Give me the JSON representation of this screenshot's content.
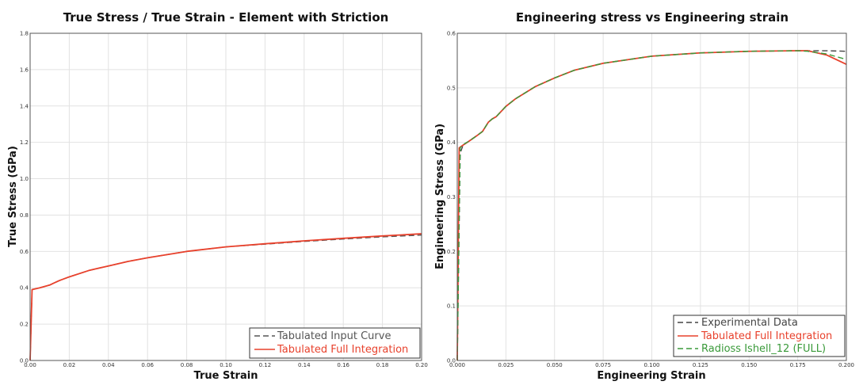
{
  "chart_data": [
    {
      "type": "line",
      "title": "True Stress / True Strain - Element with Striction",
      "xlabel": "True Strain",
      "ylabel": "True Stress (GPa)",
      "xlim": [
        0,
        0.2
      ],
      "ylim": [
        0,
        1.8
      ],
      "x_ticks": [
        "0.00",
        "0.02",
        "0.04",
        "0.06",
        "0.08",
        "0.10",
        "0.12",
        "0.14",
        "0.16",
        "0.18",
        "0.20"
      ],
      "x_tick_values": [
        0,
        0.02,
        0.04,
        0.06,
        0.08,
        0.1,
        0.12,
        0.14,
        0.16,
        0.18,
        0.2
      ],
      "y_ticks": [
        "0.0",
        "0.2",
        "0.4",
        "0.6",
        "0.8",
        "1.0",
        "1.2",
        "1.4",
        "1.6",
        "1.8"
      ],
      "y_tick_values": [
        0,
        0.2,
        0.4,
        0.6,
        0.8,
        1.0,
        1.2,
        1.4,
        1.6,
        1.8
      ],
      "grid": true,
      "legend_position": "bottom-right",
      "series": [
        {
          "name": "Tabulated Input Curve",
          "color": "#555555",
          "dash": "dashed",
          "x": [
            0,
            0.001,
            0.005,
            0.01,
            0.012,
            0.015,
            0.02,
            0.03,
            0.04,
            0.05,
            0.06,
            0.08,
            0.1,
            0.12,
            0.14,
            0.16,
            0.18,
            0.2
          ],
          "y": [
            0,
            0.39,
            0.4,
            0.415,
            0.425,
            0.44,
            0.46,
            0.495,
            0.52,
            0.545,
            0.565,
            0.6,
            0.625,
            0.64,
            0.655,
            0.668,
            0.68,
            0.69
          ]
        },
        {
          "name": "Tabulated Full Integration",
          "color": "#e8412c",
          "dash": "solid",
          "x": [
            0,
            0.001,
            0.005,
            0.01,
            0.012,
            0.015,
            0.02,
            0.03,
            0.04,
            0.05,
            0.06,
            0.08,
            0.1,
            0.12,
            0.14,
            0.16,
            0.18,
            0.2
          ],
          "y": [
            0,
            0.39,
            0.4,
            0.415,
            0.425,
            0.44,
            0.46,
            0.495,
            0.52,
            0.545,
            0.565,
            0.6,
            0.625,
            0.642,
            0.658,
            0.672,
            0.685,
            0.697
          ]
        }
      ]
    },
    {
      "type": "line",
      "title": "Engineering stress vs Engineering strain",
      "xlabel": "Engineering Strain",
      "ylabel": "Engineering Stress (GPa)",
      "xlim": [
        0,
        0.2
      ],
      "ylim": [
        0,
        0.6
      ],
      "x_ticks": [
        "0.000",
        "0.025",
        "0.050",
        "0.075",
        "0.100",
        "0.125",
        "0.150",
        "0.175",
        "0.200"
      ],
      "x_tick_values": [
        0,
        0.025,
        0.05,
        0.075,
        0.1,
        0.125,
        0.15,
        0.175,
        0.2
      ],
      "y_ticks": [
        "0.0",
        "0.1",
        "0.2",
        "0.3",
        "0.4",
        "0.5",
        "0.6"
      ],
      "y_tick_values": [
        0,
        0.1,
        0.2,
        0.3,
        0.4,
        0.5,
        0.6
      ],
      "grid": true,
      "legend_position": "bottom-right",
      "series": [
        {
          "name": "Experimental Data",
          "color": "#444444",
          "dash": "dashed",
          "x": [
            0,
            0.0015,
            0.003,
            0.006,
            0.01,
            0.013,
            0.016,
            0.018,
            0.02,
            0.025,
            0.03,
            0.04,
            0.05,
            0.06,
            0.075,
            0.1,
            0.125,
            0.15,
            0.175,
            0.18,
            0.19,
            0.2
          ],
          "y": [
            0,
            0.38,
            0.395,
            0.402,
            0.412,
            0.42,
            0.437,
            0.443,
            0.447,
            0.466,
            0.48,
            0.502,
            0.518,
            0.532,
            0.545,
            0.558,
            0.564,
            0.567,
            0.568,
            0.568,
            0.568,
            0.567
          ]
        },
        {
          "name": "Tabulated Full Integration",
          "color": "#e8412c",
          "dash": "solid",
          "x": [
            0,
            0.001,
            0.003,
            0.006,
            0.01,
            0.013,
            0.016,
            0.018,
            0.02,
            0.025,
            0.03,
            0.04,
            0.05,
            0.06,
            0.075,
            0.1,
            0.125,
            0.15,
            0.175,
            0.18,
            0.19,
            0.2
          ],
          "y": [
            0,
            0.39,
            0.395,
            0.402,
            0.412,
            0.42,
            0.437,
            0.443,
            0.447,
            0.466,
            0.48,
            0.502,
            0.518,
            0.532,
            0.545,
            0.558,
            0.564,
            0.567,
            0.568,
            0.568,
            0.56,
            0.543
          ]
        },
        {
          "name": "Radioss Ishell_12 (FULL)",
          "color": "#3a9a3a",
          "dash": "dashed",
          "x": [
            0,
            0.0015,
            0.003,
            0.006,
            0.01,
            0.013,
            0.016,
            0.018,
            0.02,
            0.025,
            0.03,
            0.04,
            0.05,
            0.06,
            0.075,
            0.1,
            0.125,
            0.15,
            0.175,
            0.18,
            0.19,
            0.2
          ],
          "y": [
            0,
            0.39,
            0.396,
            0.402,
            0.412,
            0.42,
            0.437,
            0.443,
            0.447,
            0.466,
            0.48,
            0.502,
            0.518,
            0.532,
            0.545,
            0.558,
            0.564,
            0.567,
            0.568,
            0.567,
            0.562,
            0.552
          ]
        }
      ]
    }
  ]
}
